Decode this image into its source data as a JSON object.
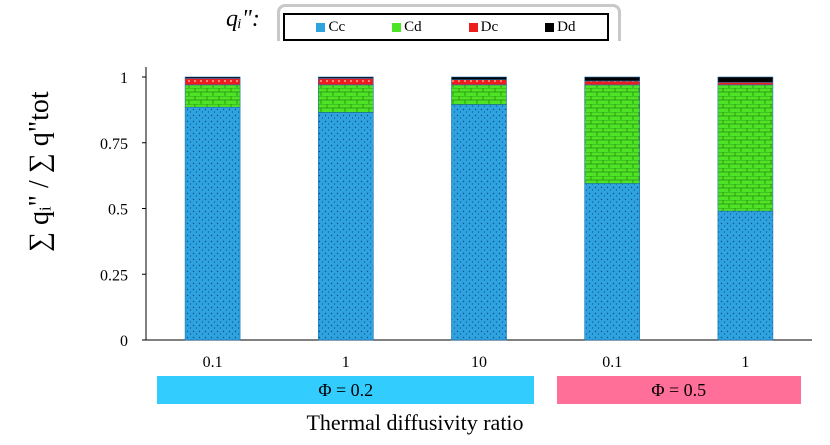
{
  "chart_data": {
    "type": "bar",
    "stacked": true,
    "title": "",
    "xlabel": "Thermal diffusivity ratio",
    "ylabel": "∑ qᵢ\" / ∑ q\"tot",
    "ylim": [
      0,
      1
    ],
    "yticks": [
      "0",
      "0.25",
      "0.5",
      "0.75",
      "1"
    ],
    "categories": [
      "0.1",
      "1",
      "10",
      "0.1",
      "1"
    ],
    "series": [
      {
        "name": "Cc",
        "color": "#2ea3e0",
        "values": [
          0.885,
          0.865,
          0.895,
          0.595,
          0.49
        ]
      },
      {
        "name": "Cd",
        "color": "#4ee324",
        "values": [
          0.085,
          0.105,
          0.075,
          0.375,
          0.48
        ]
      },
      {
        "name": "Dc",
        "color": "#ee1c1c",
        "values": [
          0.025,
          0.025,
          0.02,
          0.015,
          0.01
        ]
      },
      {
        "name": "Dd",
        "color": "#000000",
        "values": [
          0.005,
          0.005,
          0.01,
          0.015,
          0.02
        ]
      }
    ],
    "legend_label": "qᵢ\":",
    "groups": [
      {
        "label": "Φ = 0.2",
        "color": "#33ccff",
        "span": [
          0,
          2
        ]
      },
      {
        "label": "Φ = 0.5",
        "color": "#ff6f98",
        "span": [
          3,
          4
        ]
      }
    ]
  }
}
